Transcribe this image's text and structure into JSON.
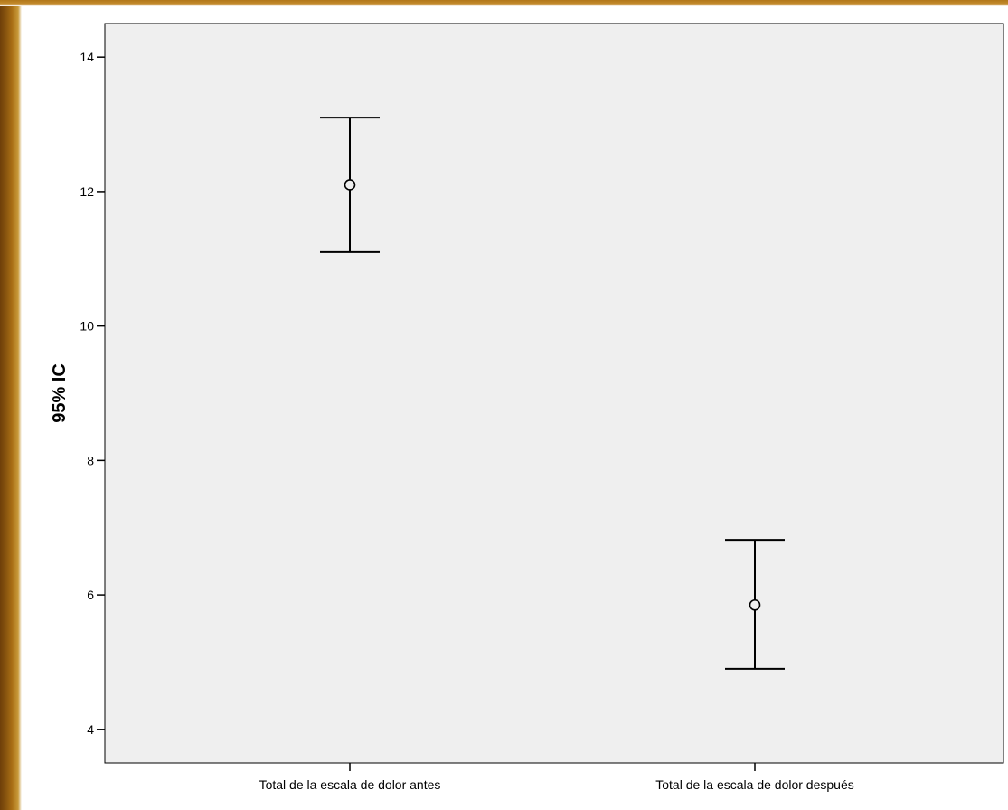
{
  "colors": {
    "plot_background": "#efefef",
    "frame_border": "#9c6512",
    "marks": "#000000"
  },
  "chart_data": {
    "type": "errorbar",
    "title": "",
    "xlabel": "",
    "ylabel": "95% IC",
    "ylim": [
      3.5,
      14.5
    ],
    "yticks": [
      4,
      6,
      8,
      10,
      12,
      14
    ],
    "grid": false,
    "categories": [
      "Total de la escala de dolor antes",
      "Total de la escala de dolor después"
    ],
    "series": [
      {
        "means": [
          12.1,
          5.85
        ],
        "lower": [
          11.1,
          4.9
        ],
        "upper": [
          13.1,
          6.82
        ]
      }
    ]
  }
}
